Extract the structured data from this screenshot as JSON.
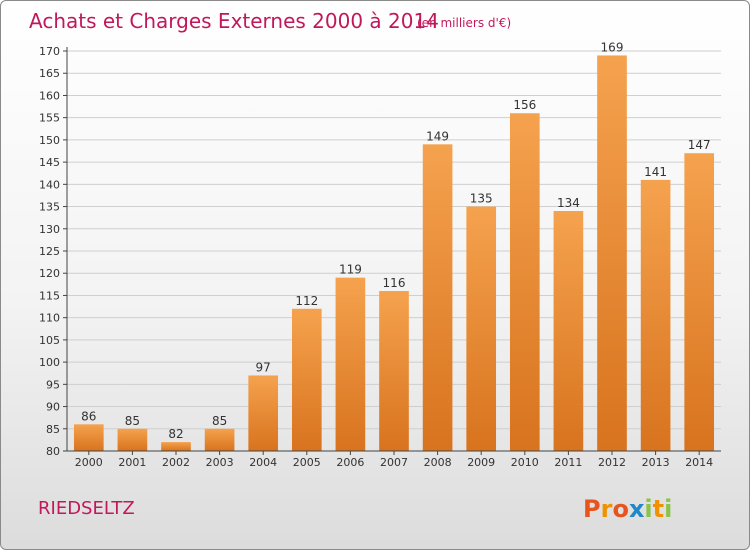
{
  "chart_data": {
    "type": "bar",
    "title": "Achats et Charges Externes 2000 à 2014",
    "subtitle": "(en milliers d'€)",
    "categories": [
      "2000",
      "2001",
      "2002",
      "2003",
      "2004",
      "2005",
      "2006",
      "2007",
      "2008",
      "2009",
      "2010",
      "2011",
      "2012",
      "2013",
      "2014"
    ],
    "values": [
      86,
      85,
      82,
      85,
      97,
      112,
      119,
      116,
      149,
      135,
      156,
      134,
      169,
      141,
      147
    ],
    "ylim": [
      80,
      170
    ],
    "yticks": [
      80,
      85,
      90,
      95,
      100,
      105,
      110,
      115,
      120,
      125,
      130,
      135,
      140,
      145,
      150,
      155,
      160,
      165,
      170
    ],
    "grid": true,
    "legend": "none",
    "bar_color_top": "#f5a24e",
    "bar_color_bottom": "#d8731e"
  },
  "place_name": "RIEDSELTZ",
  "logo": {
    "letters": [
      "P",
      "r",
      "o",
      "x",
      "i",
      "t",
      "i"
    ],
    "colors": [
      "#e8541e",
      "#f29100",
      "#e8541e",
      "#1e88c8",
      "#8bc34a",
      "#f29100",
      "#8bc34a"
    ]
  }
}
